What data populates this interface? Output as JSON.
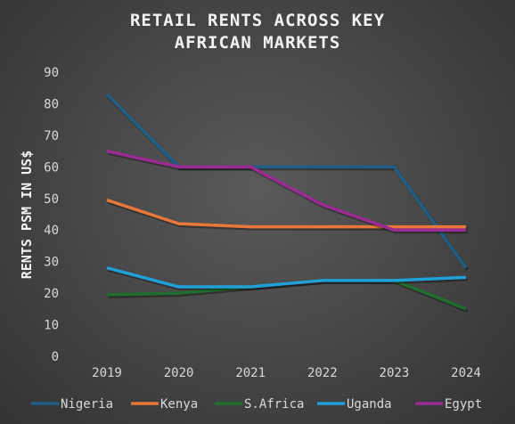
{
  "chart_data": {
    "type": "line",
    "title": [
      "RETAIL RENTS ACROSS KEY",
      "AFRICAN MARKETS"
    ],
    "xlabel": "",
    "ylabel": "RENTS PSM  IN US$",
    "categories": [
      "2019",
      "2020",
      "2021",
      "2022",
      "2023",
      "2024"
    ],
    "ylim": [
      0,
      90
    ],
    "yticks": [
      0,
      10,
      20,
      30,
      40,
      50,
      60,
      70,
      80,
      90
    ],
    "grid": false,
    "legend_position": "bottom",
    "series": [
      {
        "name": "Nigeria",
        "color": "#1f5f85",
        "values": [
          83,
          60,
          60,
          60,
          60,
          28
        ]
      },
      {
        "name": "Kenya",
        "color": "#e8773a",
        "values": [
          49.5,
          42,
          41,
          41,
          41,
          41
        ]
      },
      {
        "name": "S.Africa",
        "color": "#1f6e2e",
        "values": [
          19.5,
          20,
          22,
          24,
          24,
          15
        ]
      },
      {
        "name": "Uganda",
        "color": "#1fa0d8",
        "values": [
          28,
          22,
          22,
          24,
          24,
          25
        ]
      },
      {
        "name": "Egypt",
        "color": "#9b2a94",
        "values": [
          65,
          60,
          60,
          48,
          40,
          40
        ]
      }
    ]
  }
}
